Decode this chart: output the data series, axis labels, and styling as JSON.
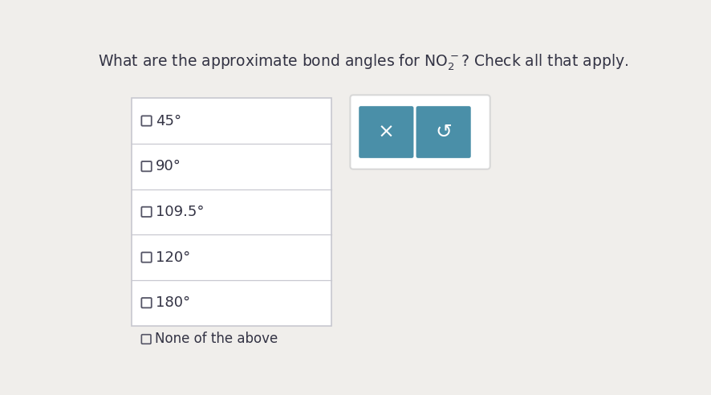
{
  "title_pre": "What are the approximate bond angles for ",
  "title_post": "? Check all that apply.",
  "options": [
    "45°",
    "90°",
    "109.5°",
    "120°",
    "180°"
  ],
  "none_label": "None of the above",
  "bg_color": "#f0eeeb",
  "table_border_color": "#c8c8d0",
  "button_color": "#4a8fa8",
  "button_x_text": "×",
  "button_undo_text": "↺",
  "panel_border_color": "#d8d8d8",
  "checkbox_color": "#555566",
  "text_color": "#333344",
  "font_size_title": 13.5,
  "font_size_option": 13,
  "font_size_none": 12,
  "font_size_button_x": 18,
  "font_size_button_undo": 18
}
